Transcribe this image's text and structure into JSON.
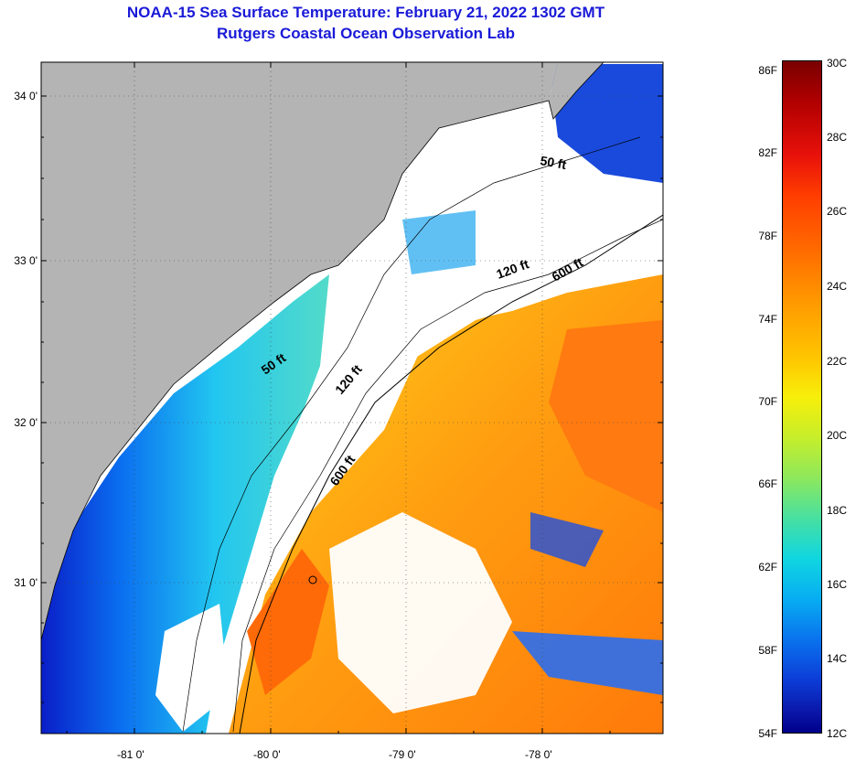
{
  "header": {
    "title": "NOAA-15 Sea Surface Temperature:  February 21, 2022 1302 GMT",
    "subtitle": "Rutgers Coastal Ocean Observation Lab"
  },
  "axes": {
    "lat_labels": [
      "34 0'",
      "33 0'",
      "32 0'",
      "31 0'"
    ],
    "lon_labels": [
      "-81 0'",
      "-80 0'",
      "-79 0'",
      "-78 0'"
    ]
  },
  "contours": {
    "c50a": "50 ft",
    "c50b": "50 ft",
    "c120a": "120 ft",
    "c120b": "120 ft",
    "c600a": "600 ft",
    "c600b": "600 ft"
  },
  "colorbar": {
    "f_labels": [
      "86F",
      "82F",
      "78F",
      "74F",
      "70F",
      "66F",
      "62F",
      "58F",
      "54F"
    ],
    "c_labels": [
      "30C",
      "28C",
      "26C",
      "24C",
      "22C",
      "20C",
      "18C",
      "16C",
      "14C",
      "12C"
    ]
  },
  "colors": {
    "land": "#b4b4b4",
    "cloud": "#ffffff",
    "title": "#1a1ad8"
  }
}
